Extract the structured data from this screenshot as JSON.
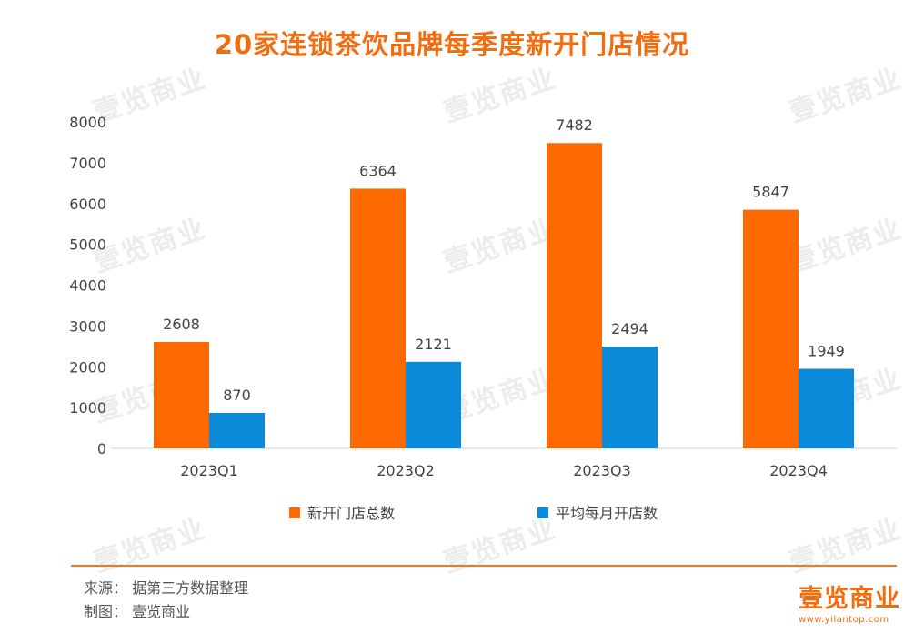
{
  "chart_data": {
    "type": "bar",
    "title": "20家连锁茶饮品牌每季度新开门店情况",
    "categories": [
      "2023Q1",
      "2023Q2",
      "2023Q3",
      "2023Q4"
    ],
    "series": [
      {
        "name": "新开门店总数",
        "values": [
          2608,
          6364,
          7482,
          5847
        ],
        "color": "#ff6a00"
      },
      {
        "name": "平均每月开店数",
        "values": [
          870,
          2121,
          2494,
          1949
        ],
        "color": "#0a8ad8"
      }
    ],
    "ylim": [
      0,
      8000
    ],
    "yticks": [
      0,
      1000,
      2000,
      3000,
      4000,
      5000,
      6000,
      7000,
      8000
    ],
    "grid": false,
    "legend": "bottom",
    "data_labels": true
  },
  "footer": {
    "source": "来源：  据第三方数据整理",
    "chart_by": "制图：  壹览商业"
  },
  "watermark": "壹览商业",
  "logo": {
    "text": "壹览商业",
    "url": "www.yilantop.com"
  }
}
